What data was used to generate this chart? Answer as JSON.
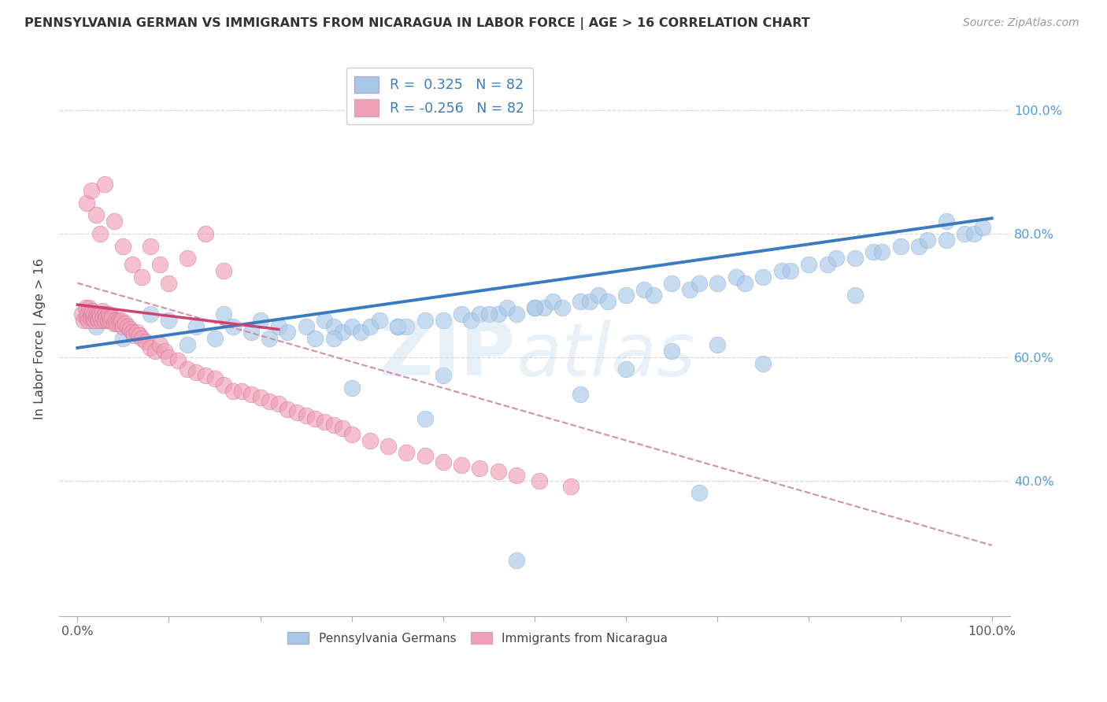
{
  "title": "PENNSYLVANIA GERMAN VS IMMIGRANTS FROM NICARAGUA IN LABOR FORCE | AGE > 16 CORRELATION CHART",
  "source": "Source: ZipAtlas.com",
  "ylabel": "In Labor Force | Age > 16",
  "R_blue": 0.325,
  "R_pink": -0.256,
  "N": 82,
  "legend_label_blue": "Pennsylvania Germans",
  "legend_label_pink": "Immigrants from Nicaragua",
  "blue_color": "#a8c8e8",
  "pink_color": "#f0a0b8",
  "blue_line_color": "#3a7abf",
  "pink_line_color": "#d04070",
  "dashed_line_color": "#d090a8",
  "grid_color": "#d8d8d8",
  "background_color": "#ffffff",
  "ytick_positions": [
    0.4,
    0.6,
    0.8,
    1.0
  ],
  "ytick_labels": [
    "40.0%",
    "60.0%",
    "80.0%",
    "100.0%"
  ],
  "xlim": [
    -0.02,
    1.02
  ],
  "ylim": [
    0.18,
    1.08
  ],
  "blue_line": {
    "x0": 0.0,
    "y0": 0.615,
    "x1": 1.0,
    "y1": 0.825
  },
  "pink_line": {
    "x0": 0.0,
    "y0": 0.685,
    "x1": 0.22,
    "y1": 0.645
  },
  "dashed_line": {
    "x0": 0.0,
    "y0": 0.72,
    "x1": 1.0,
    "y1": 0.295
  },
  "blue_x": [
    0.02,
    0.05,
    0.08,
    0.1,
    0.12,
    0.13,
    0.15,
    0.16,
    0.17,
    0.19,
    0.2,
    0.21,
    0.22,
    0.23,
    0.25,
    0.26,
    0.27,
    0.28,
    0.29,
    0.3,
    0.31,
    0.32,
    0.33,
    0.35,
    0.36,
    0.38,
    0.4,
    0.42,
    0.43,
    0.44,
    0.46,
    0.47,
    0.48,
    0.5,
    0.51,
    0.52,
    0.53,
    0.55,
    0.56,
    0.57,
    0.58,
    0.6,
    0.62,
    0.63,
    0.65,
    0.67,
    0.68,
    0.7,
    0.72,
    0.73,
    0.75,
    0.77,
    0.78,
    0.8,
    0.82,
    0.83,
    0.85,
    0.87,
    0.88,
    0.9,
    0.92,
    0.93,
    0.95,
    0.97,
    0.98,
    0.99,
    0.28,
    0.35,
    0.45,
    0.5,
    0.3,
    0.4,
    0.6,
    0.7,
    0.55,
    0.65,
    0.75,
    0.85,
    0.95,
    0.38,
    0.68,
    0.48
  ],
  "blue_y": [
    0.65,
    0.63,
    0.67,
    0.66,
    0.62,
    0.65,
    0.63,
    0.67,
    0.65,
    0.64,
    0.66,
    0.63,
    0.65,
    0.64,
    0.65,
    0.63,
    0.66,
    0.65,
    0.64,
    0.65,
    0.64,
    0.65,
    0.66,
    0.65,
    0.65,
    0.66,
    0.66,
    0.67,
    0.66,
    0.67,
    0.67,
    0.68,
    0.67,
    0.68,
    0.68,
    0.69,
    0.68,
    0.69,
    0.69,
    0.7,
    0.69,
    0.7,
    0.71,
    0.7,
    0.72,
    0.71,
    0.72,
    0.72,
    0.73,
    0.72,
    0.73,
    0.74,
    0.74,
    0.75,
    0.75,
    0.76,
    0.76,
    0.77,
    0.77,
    0.78,
    0.78,
    0.79,
    0.79,
    0.8,
    0.8,
    0.81,
    0.63,
    0.65,
    0.67,
    0.68,
    0.55,
    0.57,
    0.58,
    0.62,
    0.54,
    0.61,
    0.59,
    0.7,
    0.82,
    0.5,
    0.38,
    0.27
  ],
  "pink_x": [
    0.005,
    0.007,
    0.009,
    0.01,
    0.011,
    0.012,
    0.013,
    0.014,
    0.015,
    0.016,
    0.017,
    0.018,
    0.019,
    0.02,
    0.021,
    0.022,
    0.023,
    0.024,
    0.025,
    0.026,
    0.027,
    0.028,
    0.03,
    0.031,
    0.032,
    0.033,
    0.034,
    0.035,
    0.036,
    0.038,
    0.04,
    0.042,
    0.043,
    0.045,
    0.046,
    0.048,
    0.05,
    0.052,
    0.055,
    0.057,
    0.06,
    0.062,
    0.065,
    0.068,
    0.07,
    0.075,
    0.08,
    0.085,
    0.09,
    0.095,
    0.1,
    0.11,
    0.12,
    0.13,
    0.14,
    0.15,
    0.16,
    0.17,
    0.18,
    0.19,
    0.2,
    0.21,
    0.22,
    0.23,
    0.24,
    0.25,
    0.26,
    0.27,
    0.28,
    0.29,
    0.3,
    0.32,
    0.34,
    0.36,
    0.38,
    0.4,
    0.42,
    0.44,
    0.46,
    0.48,
    0.505,
    0.54
  ],
  "pink_y": [
    0.67,
    0.66,
    0.68,
    0.665,
    0.67,
    0.66,
    0.68,
    0.665,
    0.67,
    0.675,
    0.665,
    0.67,
    0.66,
    0.665,
    0.67,
    0.665,
    0.66,
    0.67,
    0.665,
    0.66,
    0.675,
    0.665,
    0.66,
    0.67,
    0.665,
    0.66,
    0.67,
    0.665,
    0.66,
    0.665,
    0.655,
    0.66,
    0.655,
    0.66,
    0.655,
    0.66,
    0.65,
    0.655,
    0.65,
    0.645,
    0.64,
    0.635,
    0.64,
    0.635,
    0.63,
    0.625,
    0.615,
    0.61,
    0.62,
    0.61,
    0.6,
    0.595,
    0.58,
    0.575,
    0.57,
    0.565,
    0.555,
    0.545,
    0.545,
    0.54,
    0.535,
    0.528,
    0.525,
    0.515,
    0.51,
    0.505,
    0.5,
    0.495,
    0.49,
    0.485,
    0.475,
    0.465,
    0.455,
    0.445,
    0.44,
    0.43,
    0.425,
    0.42,
    0.415,
    0.408,
    0.4,
    0.39
  ],
  "pink_high_x": [
    0.01,
    0.015,
    0.02,
    0.025,
    0.03,
    0.04,
    0.05,
    0.06,
    0.07,
    0.08,
    0.09,
    0.1,
    0.12,
    0.14,
    0.16
  ],
  "pink_high_y": [
    0.85,
    0.87,
    0.83,
    0.8,
    0.88,
    0.82,
    0.78,
    0.75,
    0.73,
    0.78,
    0.75,
    0.72,
    0.76,
    0.8,
    0.74
  ]
}
